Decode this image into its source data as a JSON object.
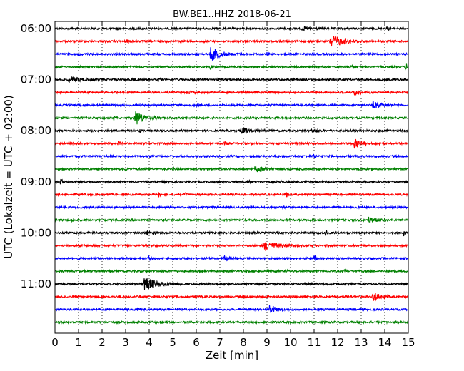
{
  "chart_data": {
    "type": "line",
    "title": "BW.BE1..HHZ 2018-06-21",
    "xlabel": "Zeit  [min]",
    "ylabel": "UTC (Lokalzeit = UTC + 02:00)",
    "xlim": [
      0,
      15
    ],
    "x_ticks": [
      "0",
      "1",
      "2",
      "3",
      "4",
      "5",
      "6",
      "7",
      "8",
      "9",
      "10",
      "11",
      "12",
      "13",
      "14",
      "15"
    ],
    "y_ticks": [
      {
        "label": "06:00",
        "trace": 0
      },
      {
        "label": "07:00",
        "trace": 4
      },
      {
        "label": "08:00",
        "trace": 8
      },
      {
        "label": "09:00",
        "trace": 12
      },
      {
        "label": "10:00",
        "trace": 16
      },
      {
        "label": "11:00",
        "trace": 20
      }
    ],
    "grid": "vertical dotted at each minute",
    "colors": [
      "#000000",
      "#ff0000",
      "#0000ff",
      "#008000"
    ],
    "traces": [
      {
        "start": "06:00",
        "color": "#000000",
        "events": [
          {
            "t": 10.5,
            "amp": 0.25,
            "dur": 0.5
          },
          {
            "t": 14.1,
            "amp": 0.4,
            "dur": 0.05
          }
        ]
      },
      {
        "start": "06:15",
        "color": "#ff0000",
        "events": [
          {
            "t": 11.7,
            "amp": 1.0,
            "dur": 0.7
          },
          {
            "t": 3.0,
            "amp": 0.15,
            "dur": 0.3
          }
        ]
      },
      {
        "start": "06:30",
        "color": "#0000ff",
        "events": [
          {
            "t": 6.6,
            "amp": 1.0,
            "dur": 0.6
          },
          {
            "t": 1.0,
            "amp": 0.3,
            "dur": 0.05
          },
          {
            "t": 9.0,
            "amp": 0.2,
            "dur": 0.05
          }
        ]
      },
      {
        "start": "06:45",
        "color": "#008000",
        "events": [
          {
            "t": 6.6,
            "amp": 0.3,
            "dur": 0.1
          },
          {
            "t": 14.9,
            "amp": 0.5,
            "dur": 0.05
          },
          {
            "t": 12.5,
            "amp": 0.2,
            "dur": 0.2
          }
        ]
      },
      {
        "start": "07:00",
        "color": "#000000",
        "events": [
          {
            "t": 0.6,
            "amp": 0.5,
            "dur": 0.6
          },
          {
            "t": 3.3,
            "amp": 0.3,
            "dur": 0.05
          },
          {
            "t": 4.4,
            "amp": 0.3,
            "dur": 0.05
          }
        ]
      },
      {
        "start": "07:15",
        "color": "#ff0000",
        "events": [
          {
            "t": 12.7,
            "amp": 0.5,
            "dur": 0.3
          },
          {
            "t": 5.6,
            "amp": 0.2,
            "dur": 0.3
          }
        ]
      },
      {
        "start": "07:30",
        "color": "#0000ff",
        "events": [
          {
            "t": 13.5,
            "amp": 0.5,
            "dur": 0.5
          },
          {
            "t": 6.0,
            "amp": 0.2,
            "dur": 0.05
          }
        ]
      },
      {
        "start": "07:45",
        "color": "#008000",
        "events": [
          {
            "t": 3.4,
            "amp": 1.0,
            "dur": 0.6
          },
          {
            "t": 2.5,
            "amp": 0.3,
            "dur": 0.05
          },
          {
            "t": 6.2,
            "amp": 0.2,
            "dur": 0.05
          }
        ]
      },
      {
        "start": "08:00",
        "color": "#000000",
        "events": [
          {
            "t": 7.9,
            "amp": 0.55,
            "dur": 0.4
          },
          {
            "t": 10.9,
            "amp": 0.2,
            "dur": 0.3
          },
          {
            "t": 3.6,
            "amp": 0.2,
            "dur": 0.05
          }
        ]
      },
      {
        "start": "08:15",
        "color": "#ff0000",
        "events": [
          {
            "t": 12.7,
            "amp": 0.6,
            "dur": 0.5
          },
          {
            "t": 2.7,
            "amp": 0.25,
            "dur": 0.05
          },
          {
            "t": 7.2,
            "amp": 0.2,
            "dur": 0.05
          }
        ]
      },
      {
        "start": "08:30",
        "color": "#0000ff",
        "events": [
          {
            "t": 11.0,
            "amp": 0.3,
            "dur": 0.05
          }
        ]
      },
      {
        "start": "08:45",
        "color": "#008000",
        "events": [
          {
            "t": 8.5,
            "amp": 0.4,
            "dur": 0.5
          },
          {
            "t": 3.0,
            "amp": 0.2,
            "dur": 0.05
          },
          {
            "t": 5.0,
            "amp": 0.15,
            "dur": 0.05
          }
        ]
      },
      {
        "start": "09:00",
        "color": "#000000",
        "events": [
          {
            "t": 0.25,
            "amp": 0.6,
            "dur": 0.05
          },
          {
            "t": 8.2,
            "amp": 0.4,
            "dur": 0.05
          },
          {
            "t": 9.6,
            "amp": 0.2,
            "dur": 0.05
          }
        ]
      },
      {
        "start": "09:15",
        "color": "#ff0000",
        "events": [
          {
            "t": 9.8,
            "amp": 0.6,
            "dur": 0.05
          },
          {
            "t": 4.4,
            "amp": 0.3,
            "dur": 0.05
          },
          {
            "t": 5.5,
            "amp": 0.3,
            "dur": 0.05
          }
        ]
      },
      {
        "start": "09:30",
        "color": "#0000ff",
        "events": [
          {
            "t": 9.7,
            "amp": 0.3,
            "dur": 0.05
          }
        ]
      },
      {
        "start": "09:45",
        "color": "#008000",
        "events": [
          {
            "t": 13.3,
            "amp": 0.4,
            "dur": 0.4
          },
          {
            "t": 0.7,
            "amp": 0.3,
            "dur": 0.05
          },
          {
            "t": 4.6,
            "amp": 0.15,
            "dur": 0.05
          }
        ]
      },
      {
        "start": "10:00",
        "color": "#000000",
        "events": [
          {
            "t": 11.5,
            "amp": 0.5,
            "dur": 0.05
          },
          {
            "t": 3.9,
            "amp": 0.3,
            "dur": 0.3
          },
          {
            "t": 14.8,
            "amp": 0.4,
            "dur": 0.05
          }
        ]
      },
      {
        "start": "10:15",
        "color": "#ff0000",
        "events": [
          {
            "t": 8.9,
            "amp": 0.7,
            "dur": 0.7
          }
        ]
      },
      {
        "start": "10:30",
        "color": "#0000ff",
        "events": [
          {
            "t": 4.0,
            "amp": 0.4,
            "dur": 0.05
          },
          {
            "t": 7.2,
            "amp": 0.3,
            "dur": 0.2
          },
          {
            "t": 11.0,
            "amp": 0.4,
            "dur": 0.1
          }
        ]
      },
      {
        "start": "10:45",
        "color": "#008000",
        "events": [
          {
            "t": 9.8,
            "amp": 0.2,
            "dur": 0.05
          },
          {
            "t": 12.3,
            "amp": 0.2,
            "dur": 0.05
          }
        ]
      },
      {
        "start": "11:00",
        "color": "#000000",
        "events": [
          {
            "t": 3.8,
            "amp": 1.0,
            "dur": 0.8
          },
          {
            "t": 14.8,
            "amp": 0.15,
            "dur": 0.05
          }
        ]
      },
      {
        "start": "11:15",
        "color": "#ff0000",
        "events": [
          {
            "t": 13.5,
            "amp": 0.6,
            "dur": 0.5
          },
          {
            "t": 8.0,
            "amp": 0.15,
            "dur": 0.1
          }
        ]
      },
      {
        "start": "11:30",
        "color": "#0000ff",
        "events": [
          {
            "t": 9.1,
            "amp": 0.6,
            "dur": 0.4
          },
          {
            "t": 3.5,
            "amp": 0.2,
            "dur": 0.05
          },
          {
            "t": 8.2,
            "amp": 0.15,
            "dur": 0.05
          }
        ]
      },
      {
        "start": "11:45",
        "color": "#008000",
        "events": [
          {
            "t": 4.5,
            "amp": 0.2,
            "dur": 0.1
          }
        ]
      }
    ]
  }
}
